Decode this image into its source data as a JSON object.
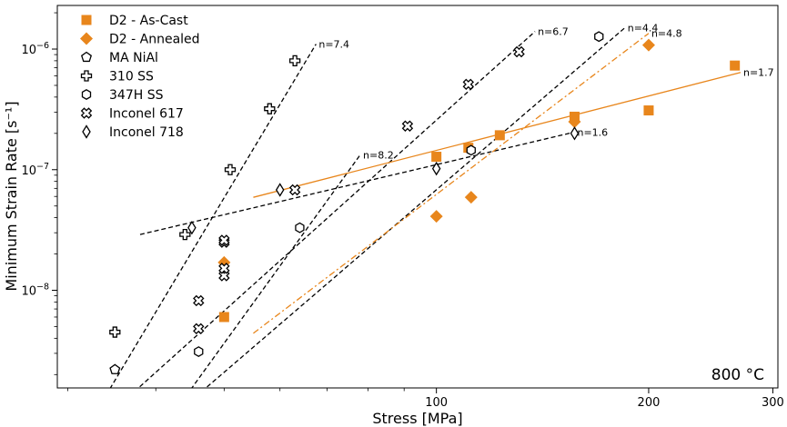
{
  "chart_data": {
    "type": "scatter",
    "title": "",
    "xlabel": "Stress [MPa]",
    "ylabel": "Minimum Strain Rate [s⁻¹]",
    "xscale": "log",
    "yscale": "log",
    "xlim": [
      29,
      305
    ],
    "ylim": [
      1.55e-09,
      2.3e-06
    ],
    "xticks": [
      {
        "value": 100,
        "label": "100"
      },
      {
        "value": 200,
        "label": "200"
      },
      {
        "value": 300,
        "label": "300"
      }
    ],
    "yticks": [
      {
        "exp": -8,
        "label_base": "10",
        "label_exp": "−8"
      },
      {
        "exp": -7,
        "label_base": "10",
        "label_exp": "−7"
      },
      {
        "exp": -6,
        "label_base": "10",
        "label_exp": "−6"
      }
    ],
    "annotation": "800 °C",
    "legend_position": "upper-left",
    "series": [
      {
        "name": "D2 - As-Cast",
        "marker": "square",
        "color": "#e8861c",
        "filled": true,
        "x": [
          50,
          100,
          111,
          123,
          157,
          200,
          265
        ],
        "y": [
          6e-09,
          1.28e-07,
          1.52e-07,
          1.93e-07,
          2.75e-07,
          3.1e-07,
          7.3e-07
        ]
      },
      {
        "name": "D2 - Annealed",
        "marker": "diamond",
        "color": "#e8861c",
        "filled": true,
        "x": [
          50,
          100,
          112,
          157,
          200
        ],
        "y": [
          1.7e-08,
          4.1e-08,
          5.9e-08,
          2.5e-07,
          1.08e-06
        ]
      },
      {
        "name": "MA NiAl",
        "marker": "pentagon",
        "color": "#000000",
        "filled": false,
        "x": [
          35
        ],
        "y": [
          2.2e-09
        ]
      },
      {
        "name": "310 SS",
        "marker": "plus",
        "color": "#000000",
        "filled": false,
        "x": [
          35,
          44,
          51,
          58,
          63
        ],
        "y": [
          4.5e-09,
          2.9e-08,
          1e-07,
          3.2e-07,
          8e-07
        ]
      },
      {
        "name": "347H SS",
        "marker": "hexagon",
        "color": "#000000",
        "filled": false,
        "x": [
          46,
          64,
          112,
          170
        ],
        "y": [
          3.1e-09,
          3.3e-08,
          1.45e-07,
          1.27e-06
        ]
      },
      {
        "name": "Inconel 617",
        "marker": "xplus",
        "color": "#000000",
        "filled": false,
        "x": [
          46,
          46,
          50,
          50,
          50,
          50,
          63,
          91,
          111,
          131
        ],
        "y": [
          4.8e-09,
          8.2e-09,
          1.32e-08,
          1.52e-08,
          2.5e-08,
          2.6e-08,
          6.8e-08,
          2.3e-07,
          5.1e-07,
          9.5e-07
        ]
      },
      {
        "name": "Inconel 718",
        "marker": "thin-diamond",
        "color": "#000000",
        "filled": false,
        "x": [
          45,
          60,
          100,
          157
        ],
        "y": [
          3.3e-08,
          6.8e-08,
          1.02e-07,
          2e-07
        ]
      }
    ],
    "fit_lines": [
      {
        "label": "n=7.4",
        "color": "#000000",
        "style": "dashed",
        "x": [
          33.6,
          67.5
        ],
        "y": [
          1.2e-09,
          1.1e-06
        ]
      },
      {
        "label": "n=6.7",
        "color": "#000000",
        "style": "dashed",
        "x": [
          36,
          138
        ],
        "y": [
          1.2e-09,
          1.4e-06
        ]
      },
      {
        "label": "n=4.4",
        "color": "#000000",
        "style": "dashed",
        "x": [
          44,
          185
        ],
        "y": [
          1.1e-09,
          1.5e-06
        ]
      },
      {
        "label": "n=8.2",
        "color": "#000000",
        "style": "dashed",
        "x": [
          43.6,
          78
        ],
        "y": [
          1.2e-09,
          1.33e-07
        ]
      },
      {
        "label": "n=1.6",
        "color": "#000000",
        "style": "dashed",
        "x": [
          38,
          157
        ],
        "y": [
          2.9e-08,
          2.05e-07
        ]
      },
      {
        "label": "n=4.8",
        "color": "#e8861c",
        "style": "dashdot",
        "x": [
          55,
          200
        ],
        "y": [
          4.4e-09,
          1.35e-06
        ]
      },
      {
        "label": "n=1.7",
        "color": "#e8861c",
        "style": "solid",
        "x": [
          55,
          270
        ],
        "y": [
          5.9e-08,
          6.4e-07
        ]
      }
    ]
  }
}
